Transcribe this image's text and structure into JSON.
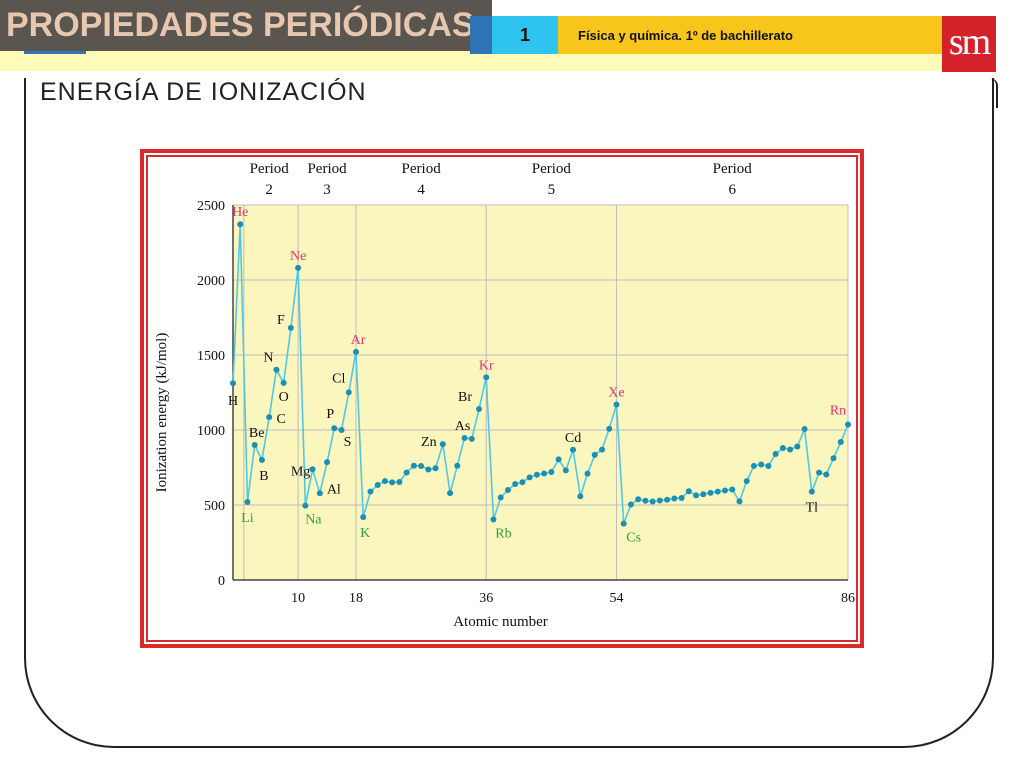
{
  "header": {
    "title": "PROPIEDADES PERIÓDICAS",
    "unit_number": "1",
    "course": "Física y química. 1º de bachillerato",
    "logo": "sm",
    "colors": {
      "title_bg": "#5b5550",
      "unit_bg": "#2fc4ef",
      "course_bg": "#f8c61b",
      "logo_bg": "#d3222a",
      "band_bg": "#fefbb8"
    }
  },
  "slide": {
    "heading": "ENERGÍA DE IONIZACIÓN"
  },
  "chart_data": {
    "type": "line",
    "xlabel": "Atomic number",
    "ylabel": "Ionization energy (kJ/mol)",
    "xlim": [
      1,
      86
    ],
    "ylim": [
      0,
      2500
    ],
    "x_ticks": [
      10,
      18,
      36,
      54,
      86
    ],
    "y_ticks": [
      0,
      500,
      1000,
      1500,
      2000,
      2500
    ],
    "grid": true,
    "period_boundaries": [
      2.5,
      10,
      18,
      36,
      54,
      86
    ],
    "periods": [
      {
        "label": "Period",
        "number": "2",
        "center": 6
      },
      {
        "label": "Period",
        "number": "3",
        "center": 14
      },
      {
        "label": "Period",
        "number": "4",
        "center": 27
      },
      {
        "label": "Period",
        "number": "5",
        "center": 45
      },
      {
        "label": "Period",
        "number": "6",
        "center": 70
      }
    ],
    "series": [
      {
        "x": [
          1,
          2,
          3,
          4,
          5,
          6,
          7,
          8,
          9,
          10,
          11,
          12,
          13,
          14,
          15,
          16,
          17,
          18,
          19,
          20,
          21,
          22,
          23,
          24,
          25,
          26,
          27,
          28,
          29,
          30,
          31,
          32,
          33,
          34,
          35,
          36,
          37,
          38,
          39,
          40,
          41,
          42,
          43,
          44,
          45,
          46,
          47,
          48,
          49,
          50,
          51,
          52,
          53,
          54,
          55,
          56,
          57,
          58,
          59,
          60,
          61,
          62,
          63,
          64,
          65,
          66,
          67,
          68,
          69,
          70,
          71,
          72,
          73,
          74,
          75,
          76,
          77,
          78,
          79,
          80,
          81,
          82,
          83,
          84,
          85,
          86
        ],
        "y": [
          1312,
          2372,
          520,
          900,
          801,
          1086,
          1402,
          1314,
          1681,
          2081,
          496,
          738,
          578,
          786,
          1012,
          1000,
          1251,
          1521,
          419,
          590,
          633,
          659,
          651,
          653,
          717,
          762,
          760,
          737,
          745,
          906,
          579,
          762,
          947,
          941,
          1140,
          1351,
          403,
          550,
          600,
          640,
          652,
          684,
          702,
          710,
          720,
          804,
          731,
          868,
          558,
          709,
          834,
          869,
          1008,
          1170,
          376,
          503,
          538,
          528,
          523,
          530,
          535,
          543,
          547,
          592,
          564,
          572,
          581,
          589,
          597,
          603,
          524,
          659,
          761,
          770,
          760,
          840,
          880,
          870,
          890,
          1007,
          589,
          716,
          703,
          812,
          920,
          1037
        ]
      }
    ],
    "labels": [
      {
        "text": "H",
        "x": 1,
        "y": 1312,
        "color": "#111111"
      },
      {
        "text": "He",
        "x": 2,
        "y": 2372,
        "color": "#e8336d"
      },
      {
        "text": "Li",
        "x": 3,
        "y": 520,
        "color": "#2ea33b"
      },
      {
        "text": "Be",
        "x": 4,
        "y": 900,
        "color": "#111111"
      },
      {
        "text": "B",
        "x": 5,
        "y": 801,
        "color": "#111111"
      },
      {
        "text": "C",
        "x": 6,
        "y": 1086,
        "color": "#111111"
      },
      {
        "text": "N",
        "x": 7,
        "y": 1402,
        "color": "#111111"
      },
      {
        "text": "O",
        "x": 8,
        "y": 1314,
        "color": "#111111"
      },
      {
        "text": "F",
        "x": 9,
        "y": 1681,
        "color": "#111111"
      },
      {
        "text": "Ne",
        "x": 10,
        "y": 2081,
        "color": "#e8336d"
      },
      {
        "text": "Na",
        "x": 11,
        "y": 496,
        "color": "#2ea33b"
      },
      {
        "text": "Mg",
        "x": 12,
        "y": 738,
        "color": "#111111"
      },
      {
        "text": "Al",
        "x": 13,
        "y": 578,
        "color": "#111111"
      },
      {
        "text": "P",
        "x": 15,
        "y": 1012,
        "color": "#111111"
      },
      {
        "text": "S",
        "x": 16,
        "y": 1000,
        "color": "#111111"
      },
      {
        "text": "Cl",
        "x": 17,
        "y": 1251,
        "color": "#111111"
      },
      {
        "text": "Ar",
        "x": 18,
        "y": 1521,
        "color": "#e8336d"
      },
      {
        "text": "K",
        "x": 19,
        "y": 419,
        "color": "#2ea33b"
      },
      {
        "text": "Zn",
        "x": 30,
        "y": 906,
        "color": "#111111"
      },
      {
        "text": "As",
        "x": 33,
        "y": 947,
        "color": "#111111"
      },
      {
        "text": "Br",
        "x": 35,
        "y": 1140,
        "color": "#111111"
      },
      {
        "text": "Kr",
        "x": 36,
        "y": 1351,
        "color": "#e8336d"
      },
      {
        "text": "Rb",
        "x": 37,
        "y": 403,
        "color": "#2ea33b"
      },
      {
        "text": "Cd",
        "x": 48,
        "y": 868,
        "color": "#111111"
      },
      {
        "text": "Xe",
        "x": 54,
        "y": 1170,
        "color": "#e8336d"
      },
      {
        "text": "Cs",
        "x": 55,
        "y": 376,
        "color": "#2ea33b"
      },
      {
        "text": "Tl",
        "x": 81,
        "y": 589,
        "color": "#111111"
      },
      {
        "text": "Rn",
        "x": 86,
        "y": 1037,
        "color": "#e8336d"
      }
    ],
    "colors": {
      "line": "#4fc8e6",
      "marker": "#1c8fb5",
      "plot_bg": "#fbf6bd",
      "grid": "#bdbdbd",
      "frame": "#d92b2b"
    }
  }
}
